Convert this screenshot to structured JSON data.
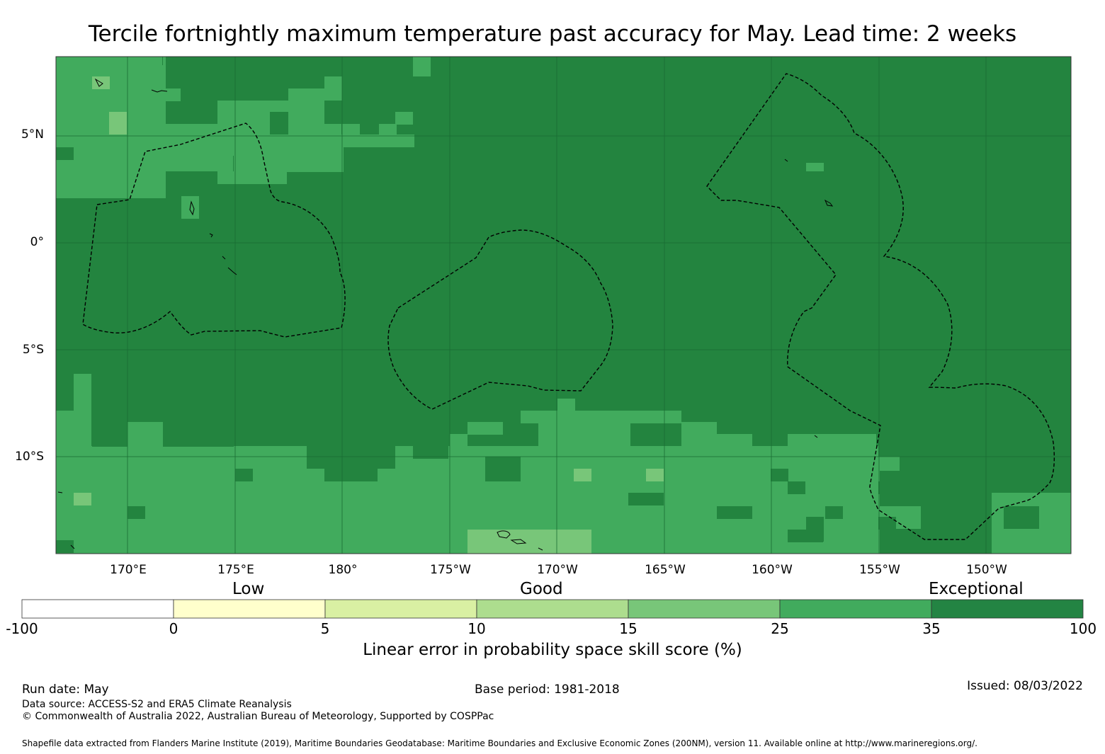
{
  "title": "Tercile fortnightly maximum temperature past accuracy for May. Lead time: 2 weeks",
  "map": {
    "lat_ticks": [
      "5°N",
      "0°",
      "5°S",
      "10°S"
    ],
    "lon_ticks": [
      "170°E",
      "175°E",
      "180°",
      "175°W",
      "170°W",
      "165°W",
      "160°W",
      "155°W",
      "150°W"
    ],
    "colors": {
      "exceptional": "#23843f",
      "c25_35": "#41ab5d",
      "c15_25": "#78c679",
      "c10_15": "#addd8e",
      "grid": "#1a6b33"
    }
  },
  "colorbar": {
    "category_labels": [
      "Low",
      "Good",
      "Exceptional"
    ],
    "ticks": [
      "-100",
      "0",
      "5",
      "10",
      "15",
      "25",
      "35",
      "100"
    ],
    "colors": [
      "#ffffff",
      "#ffffcc",
      "#d9f0a3",
      "#addd8e",
      "#78c679",
      "#41ab5d",
      "#238443"
    ],
    "label": "Linear error in probability space skill score (%)"
  },
  "footer": {
    "run_date": "Run date: May",
    "base_period": "Base period: 1981-2018",
    "issued": "Issued: 08/03/2022",
    "data_source": "Data source: ACCESS-S2 and ERA5 Climate Reanalysis",
    "copyright": "© Commonwealth of Australia 2022, Australian Bureau of Meteorology, Supported by COSPPac",
    "shapefile": "Shapefile data extracted from Flanders Marine Institute (2019), Maritime Boundaries Geodatabase: Maritime Boundaries and Exclusive Economic Zones (200NM), version 11. Available online at http://www.marineregions.org/."
  }
}
